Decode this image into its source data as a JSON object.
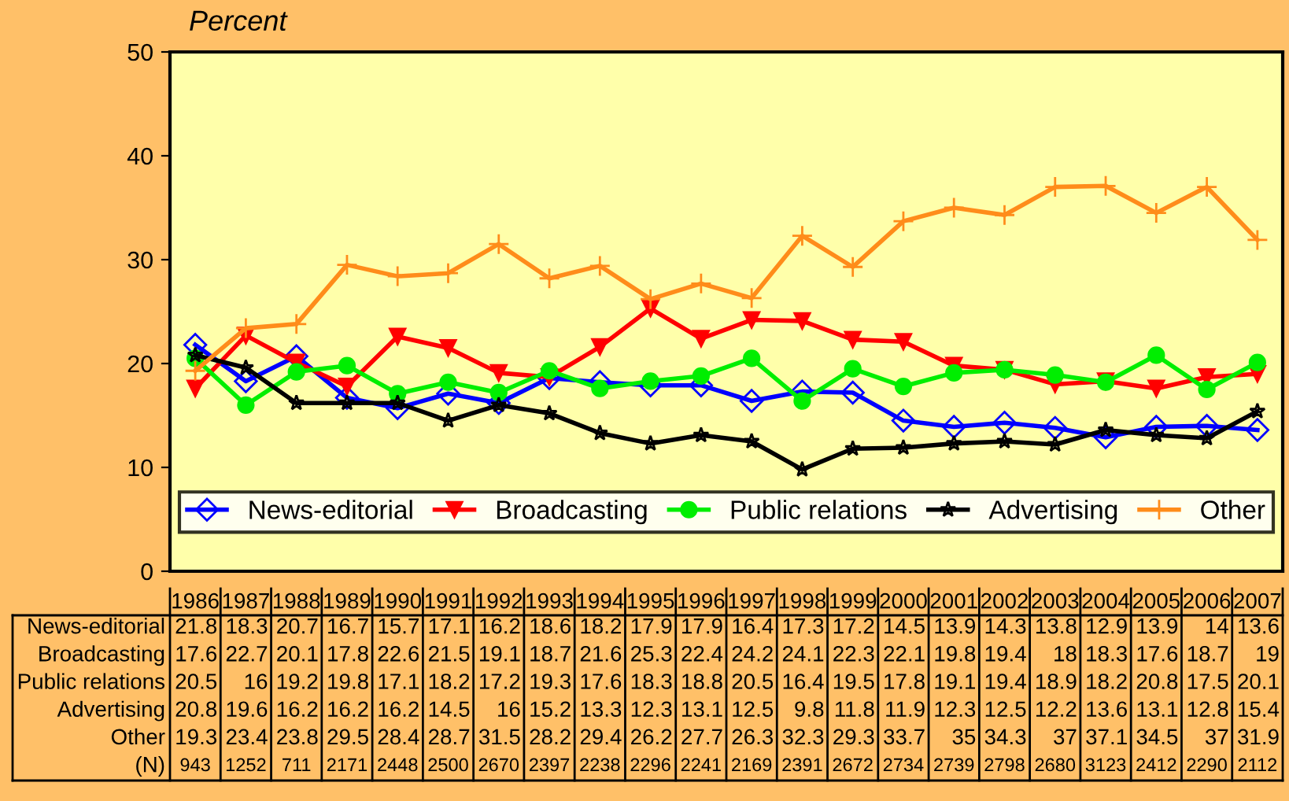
{
  "chart_data": {
    "type": "line",
    "ylabel": "Percent",
    "categories": [
      "1986",
      "1987",
      "1988",
      "1989",
      "1990",
      "1991",
      "1992",
      "1993",
      "1994",
      "1995",
      "1996",
      "1997",
      "1998",
      "1999",
      "2000",
      "2001",
      "2002",
      "2003",
      "2004",
      "2005",
      "2006",
      "2007"
    ],
    "series": [
      {
        "name": "News-editorial",
        "color": "#0000ff",
        "marker": "diamond",
        "values": [
          21.8,
          18.3,
          20.7,
          16.7,
          15.7,
          17.1,
          16.2,
          18.6,
          18.2,
          17.9,
          17.9,
          16.4,
          17.3,
          17.2,
          14.5,
          13.9,
          14.3,
          13.8,
          12.9,
          13.9,
          14,
          13.6
        ]
      },
      {
        "name": "Broadcasting",
        "color": "#ff0000",
        "marker": "triangle",
        "values": [
          17.6,
          22.7,
          20.1,
          17.8,
          22.6,
          21.5,
          19.1,
          18.7,
          21.6,
          25.3,
          22.4,
          24.2,
          24.1,
          22.3,
          22.1,
          19.8,
          19.4,
          18,
          18.3,
          17.6,
          18.7,
          19
        ]
      },
      {
        "name": "Public relations",
        "color": "#00ee00",
        "marker": "circle",
        "values": [
          20.5,
          16,
          19.2,
          19.8,
          17.1,
          18.2,
          17.2,
          19.3,
          17.6,
          18.3,
          18.8,
          20.5,
          16.4,
          19.5,
          17.8,
          19.1,
          19.4,
          18.9,
          18.2,
          20.8,
          17.5,
          20.1
        ]
      },
      {
        "name": "Advertising",
        "color": "#000000",
        "marker": "star",
        "values": [
          20.8,
          19.6,
          16.2,
          16.2,
          16.2,
          14.5,
          16,
          15.2,
          13.3,
          12.3,
          13.1,
          12.5,
          9.8,
          11.8,
          11.9,
          12.3,
          12.5,
          12.2,
          13.6,
          13.1,
          12.8,
          15.4
        ]
      },
      {
        "name": "Other",
        "color": "#ff8c1a",
        "marker": "cross",
        "values": [
          19.3,
          23.4,
          23.8,
          29.5,
          28.4,
          28.7,
          31.5,
          28.2,
          29.4,
          26.2,
          27.7,
          26.3,
          32.3,
          29.3,
          33.7,
          35,
          34.3,
          37,
          37.1,
          34.5,
          37,
          31.9
        ]
      }
    ],
    "ylim": [
      0,
      50
    ],
    "yticks": [
      0,
      10,
      20,
      30,
      40,
      50
    ],
    "grid": false,
    "legend": "bottom",
    "data_labels": true,
    "line_style": "solid",
    "annotations": [
      "(N)",
      "943",
      "1252",
      "711",
      "2171",
      "2448",
      "2500",
      "2670",
      "2397",
      "2238",
      "2296",
      "2241",
      "2169",
      "2391",
      "2672",
      "2734",
      "2739",
      "2798",
      "2680",
      "3123",
      "2412",
      "2290",
      "2112"
    ]
  }
}
